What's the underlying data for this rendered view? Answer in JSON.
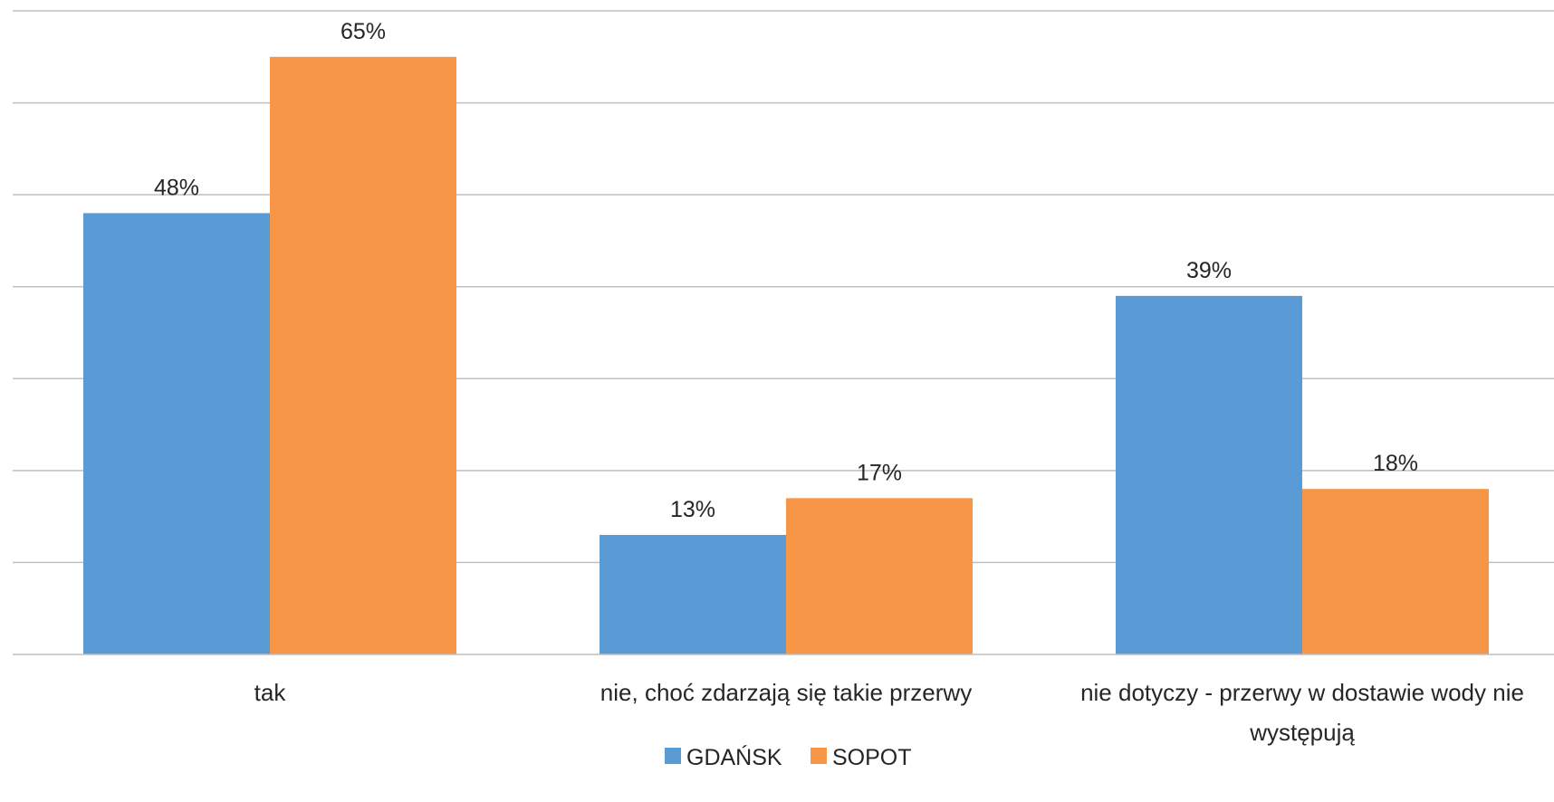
{
  "chart_data": {
    "type": "bar",
    "categories": [
      [
        "tak"
      ],
      [
        "nie, choć zdarzają się takie przerwy"
      ],
      [
        "nie dotyczy - przerwy w dostawie wody nie",
        "występują"
      ]
    ],
    "series": [
      {
        "name": "GDAŃSK",
        "color": "#5b9bd5",
        "values": [
          48,
          13,
          39
        ],
        "labels": [
          "48%",
          "13%",
          "39%"
        ]
      },
      {
        "name": "SOPOT",
        "color": "#f79646",
        "values": [
          65,
          17,
          18
        ],
        "labels": [
          "65%",
          "17%",
          "18%"
        ]
      }
    ],
    "ylim": [
      0,
      70
    ],
    "y_gridline_step": 10,
    "value_format": "percent",
    "grid": true,
    "legend_position": "bottom"
  }
}
